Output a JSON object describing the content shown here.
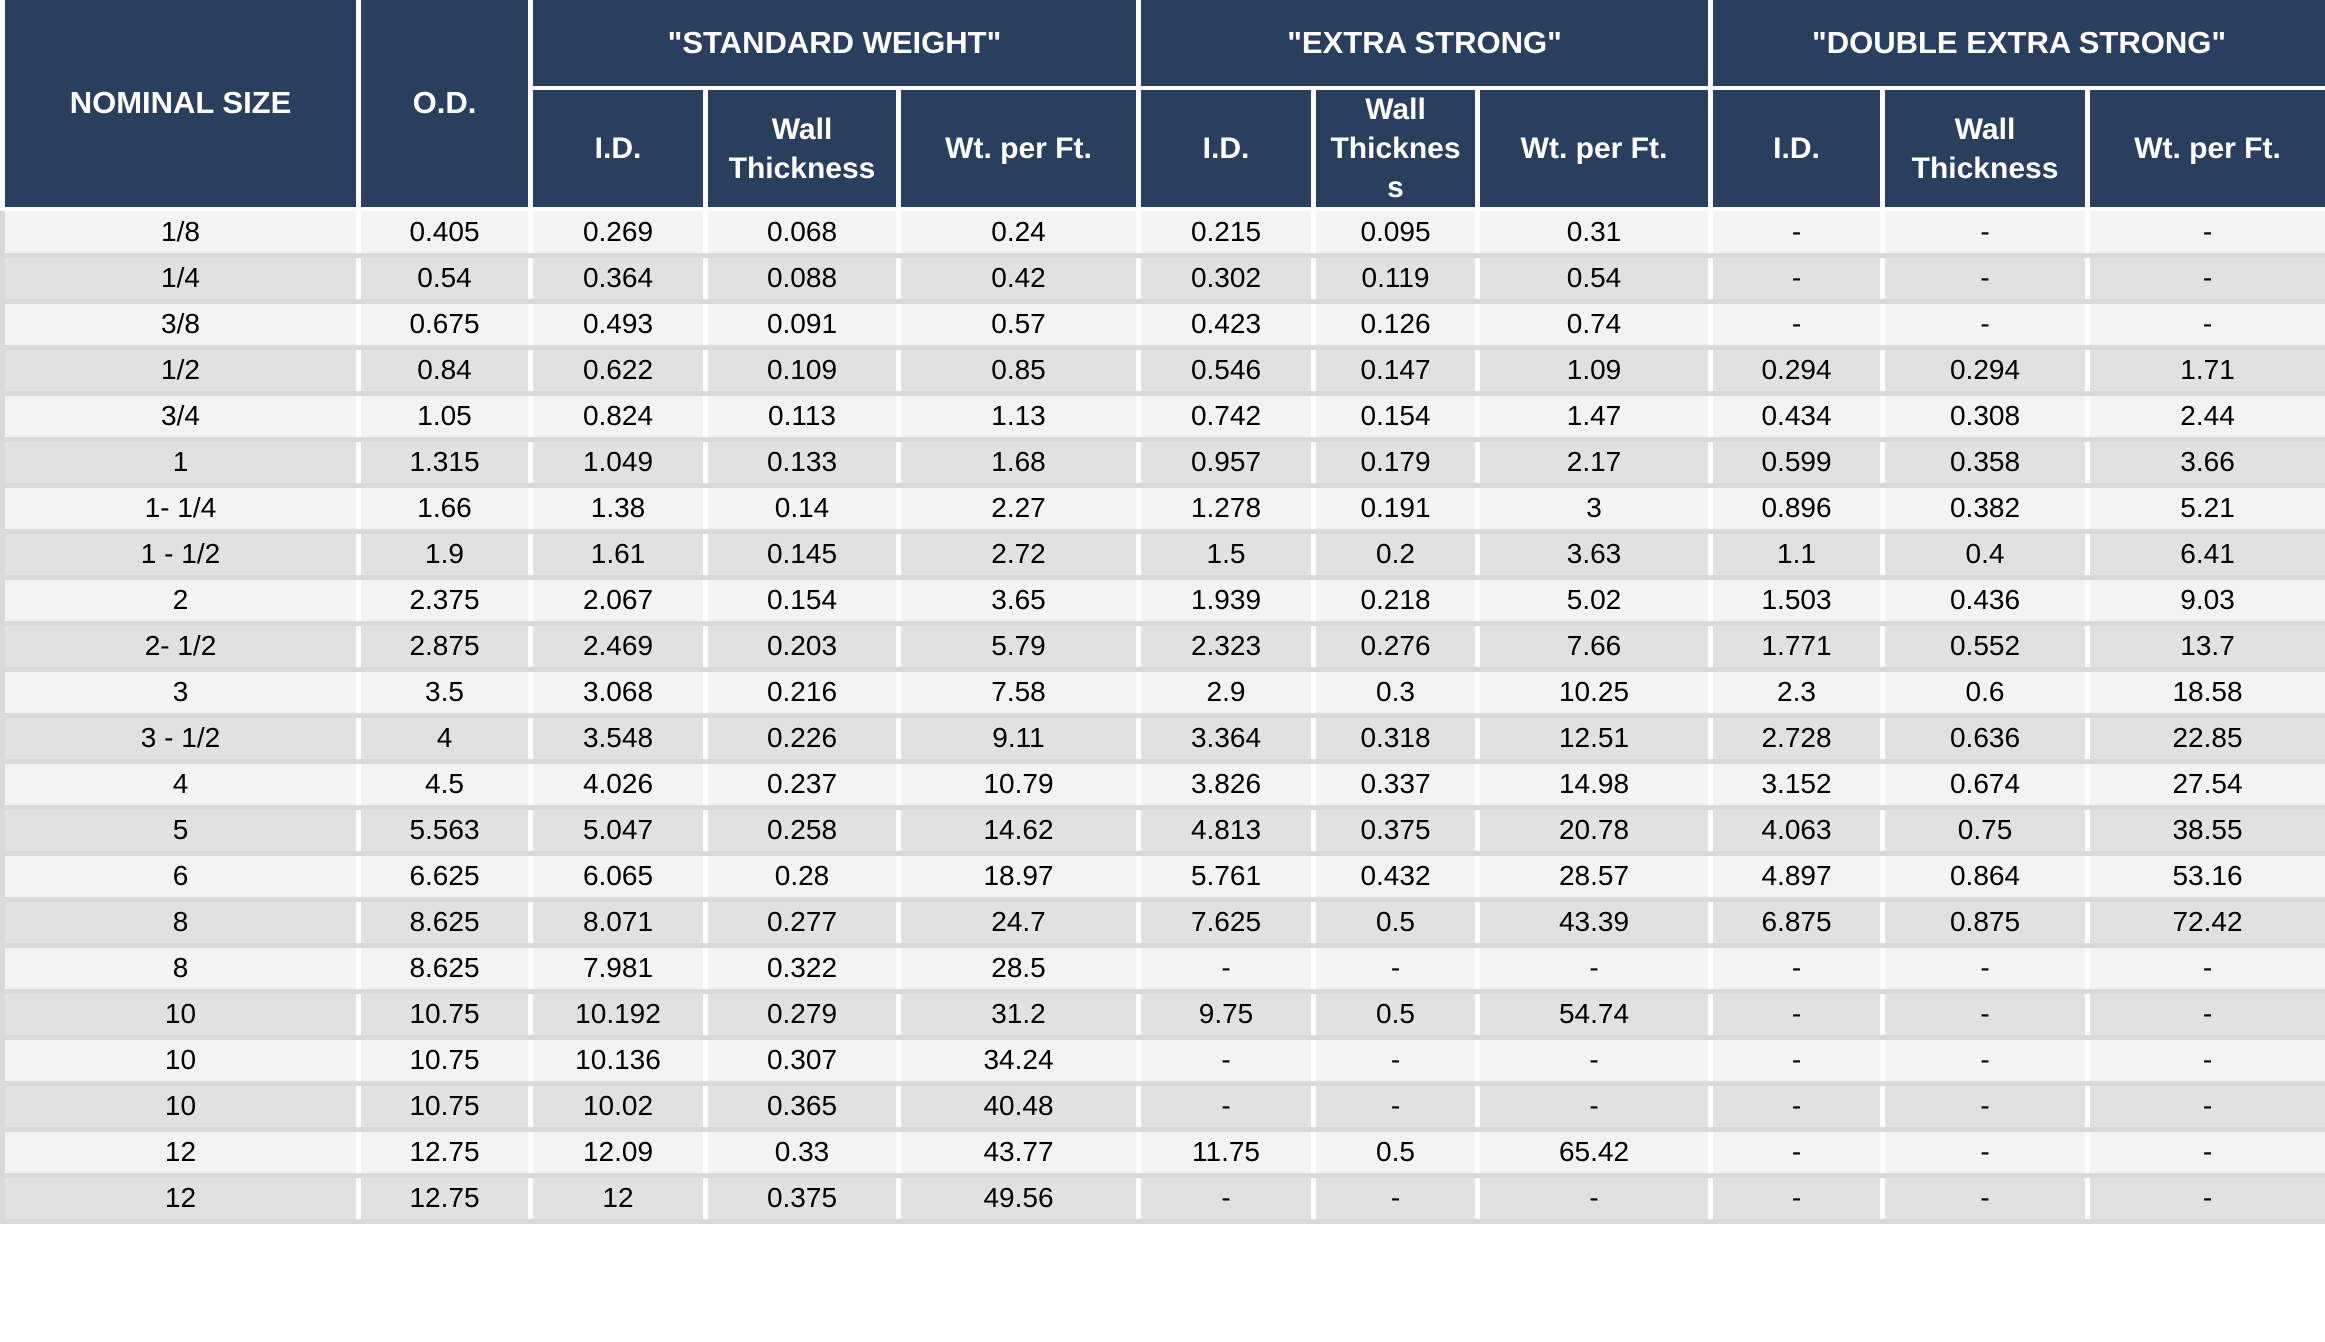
{
  "table": {
    "header": {
      "nominal_size": "NOMINAL SIZE",
      "od": "O.D.",
      "groups": [
        {
          "label": "\"STANDARD WEIGHT\"",
          "sub": [
            "I.D.",
            "Wall Thickness",
            "Wt. per Ft."
          ]
        },
        {
          "label": "\"EXTRA STRONG\"",
          "sub": [
            "I.D.",
            "Wall Thickness",
            "Wt. per Ft."
          ]
        },
        {
          "label": "\"DOUBLE EXTRA STRONG\"",
          "sub": [
            "I.D.",
            "Wall Thickness",
            "Wt. per Ft."
          ]
        }
      ]
    },
    "rows": [
      [
        "1/8",
        "0.405",
        "0.269",
        "0.068",
        "0.24",
        "0.215",
        "0.095",
        "0.31",
        "-",
        "-",
        "-"
      ],
      [
        "1/4",
        "0.54",
        "0.364",
        "0.088",
        "0.42",
        "0.302",
        "0.119",
        "0.54",
        "-",
        "-",
        "-"
      ],
      [
        "3/8",
        "0.675",
        "0.493",
        "0.091",
        "0.57",
        "0.423",
        "0.126",
        "0.74",
        "-",
        "-",
        "-"
      ],
      [
        "1/2",
        "0.84",
        "0.622",
        "0.109",
        "0.85",
        "0.546",
        "0.147",
        "1.09",
        "0.294",
        "0.294",
        "1.71"
      ],
      [
        "3/4",
        "1.05",
        "0.824",
        "0.113",
        "1.13",
        "0.742",
        "0.154",
        "1.47",
        "0.434",
        "0.308",
        "2.44"
      ],
      [
        "1",
        "1.315",
        "1.049",
        "0.133",
        "1.68",
        "0.957",
        "0.179",
        "2.17",
        "0.599",
        "0.358",
        "3.66"
      ],
      [
        "1- 1/4",
        "1.66",
        "1.38",
        "0.14",
        "2.27",
        "1.278",
        "0.191",
        "3",
        "0.896",
        "0.382",
        "5.21"
      ],
      [
        "1 - 1/2",
        "1.9",
        "1.61",
        "0.145",
        "2.72",
        "1.5",
        "0.2",
        "3.63",
        "1.1",
        "0.4",
        "6.41"
      ],
      [
        "2",
        "2.375",
        "2.067",
        "0.154",
        "3.65",
        "1.939",
        "0.218",
        "5.02",
        "1.503",
        "0.436",
        "9.03"
      ],
      [
        "2- 1/2",
        "2.875",
        "2.469",
        "0.203",
        "5.79",
        "2.323",
        "0.276",
        "7.66",
        "1.771",
        "0.552",
        "13.7"
      ],
      [
        "3",
        "3.5",
        "3.068",
        "0.216",
        "7.58",
        "2.9",
        "0.3",
        "10.25",
        "2.3",
        "0.6",
        "18.58"
      ],
      [
        "3 - 1/2",
        "4",
        "3.548",
        "0.226",
        "9.11",
        "3.364",
        "0.318",
        "12.51",
        "2.728",
        "0.636",
        "22.85"
      ],
      [
        "4",
        "4.5",
        "4.026",
        "0.237",
        "10.79",
        "3.826",
        "0.337",
        "14.98",
        "3.152",
        "0.674",
        "27.54"
      ],
      [
        "5",
        "5.563",
        "5.047",
        "0.258",
        "14.62",
        "4.813",
        "0.375",
        "20.78",
        "4.063",
        "0.75",
        "38.55"
      ],
      [
        "6",
        "6.625",
        "6.065",
        "0.28",
        "18.97",
        "5.761",
        "0.432",
        "28.57",
        "4.897",
        "0.864",
        "53.16"
      ],
      [
        "8",
        "8.625",
        "8.071",
        "0.277",
        "24.7",
        "7.625",
        "0.5",
        "43.39",
        "6.875",
        "0.875",
        "72.42"
      ],
      [
        "8",
        "8.625",
        "7.981",
        "0.322",
        "28.5",
        "-",
        "-",
        "-",
        "-",
        "-",
        "-"
      ],
      [
        "10",
        "10.75",
        "10.192",
        "0.279",
        "31.2",
        "9.75",
        "0.5",
        "54.74",
        "-",
        "-",
        "-"
      ],
      [
        "10",
        "10.75",
        "10.136",
        "0.307",
        "34.24",
        "-",
        "-",
        "-",
        "-",
        "-",
        "-"
      ],
      [
        "10",
        "10.75",
        "10.02",
        "0.365",
        "40.48",
        "-",
        "-",
        "-",
        "-",
        "-",
        "-"
      ],
      [
        "12",
        "12.75",
        "12.09",
        "0.33",
        "43.77",
        "11.75",
        "0.5",
        "65.42",
        "-",
        "-",
        "-"
      ],
      [
        "12",
        "12.75",
        "12",
        "0.375",
        "49.56",
        "-",
        "-",
        "-",
        "-",
        "-",
        "-"
      ]
    ]
  },
  "colors": {
    "header_bg": "#2A3F5E",
    "header_text": "#FFFFFF",
    "row_light": "#F3F3F3",
    "row_dark": "#E1E1E1",
    "separator": "#D9D9D9",
    "grid": "#FFFFFF",
    "cell_text": "#000000"
  }
}
